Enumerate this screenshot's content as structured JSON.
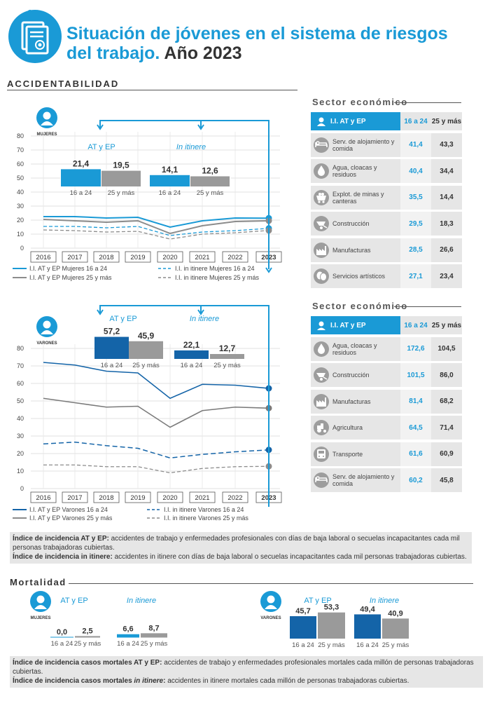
{
  "header": {
    "title_line1": "Situación de jóvenes en el sistema de riesgos",
    "title_line2_bold": "del trabajo.",
    "title_line2_year": " Año 2023"
  },
  "sections": {
    "accidentabilidad": "ACCIDENTABILIDAD",
    "mortalidad": "Mortalidad"
  },
  "colors": {
    "blue": "#1a9ad6",
    "dark_blue": "#1464a8",
    "gray": "#8c8c8c",
    "light_gray": "#e6e6e6"
  },
  "mujeres_chart": {
    "badge_label": "MUJERES",
    "group1_label": "AT y EP",
    "group2_label": "In itinere",
    "bars": [
      {
        "label": "21,4",
        "cat": "16 a 24"
      },
      {
        "label": "19,5",
        "cat": "25 y más"
      },
      {
        "label": "14,1",
        "cat": "16 a 24"
      },
      {
        "label": "12,6",
        "cat": "25 y más"
      }
    ],
    "legend": [
      "I.I. AT y EP Mujeres 16 a 24",
      "I.I. AT y EP Mujeres 25 y más",
      "I.I. in itinere Mujeres 16 a 24",
      "I.I. in itinere Mujeres 25 y más"
    ]
  },
  "varones_chart": {
    "badge_label": "VARONES",
    "group1_label": "AT y EP",
    "group2_label": "In itinere",
    "bars": [
      {
        "label": "57,2",
        "cat": "16 a 24"
      },
      {
        "label": "45,9",
        "cat": "25 y más"
      },
      {
        "label": "22,1",
        "cat": "16 a 24"
      },
      {
        "label": "12,7",
        "cat": "25 y más"
      }
    ],
    "legend": [
      "I.I. AT y EP Varones 16 a 24",
      "I.I. AT y EP Varones 25 y más",
      "I.I. in itinere Varones 16 a 24",
      "I.I. in itinere Varones 25 y más"
    ]
  },
  "chart_data": [
    {
      "type": "line",
      "x": [
        "2016",
        "2017",
        "2018",
        "2019",
        "2020",
        "2021",
        "2022",
        "2023"
      ],
      "ylim": [
        0,
        80
      ],
      "yticks": [
        "0",
        "10",
        "20",
        "30",
        "40",
        "50",
        "60",
        "70",
        "80"
      ],
      "series": [
        {
          "name": "I.I. AT y EP Mujeres 16 a 24",
          "values": [
            22.5,
            22.5,
            21.5,
            22,
            15,
            19.5,
            21.5,
            21.4
          ]
        },
        {
          "name": "I.I. AT y EP Mujeres 25 y más",
          "values": [
            20.5,
            19.5,
            18.5,
            19.5,
            10.5,
            16,
            19,
            19.5
          ]
        },
        {
          "name": "I.I. in itinere Mujeres 16 a 24",
          "values": [
            15.5,
            15.5,
            14.5,
            15.5,
            9,
            11.5,
            12.5,
            14.1
          ]
        },
        {
          "name": "I.I. in itinere Mujeres 25 y más",
          "values": [
            13,
            12.5,
            11.5,
            12,
            6.5,
            10,
            11,
            12.6
          ]
        }
      ]
    },
    {
      "type": "line",
      "x": [
        "2016",
        "2017",
        "2018",
        "2019",
        "2020",
        "2021",
        "2022",
        "2023"
      ],
      "ylim": [
        0,
        80
      ],
      "yticks": [
        "0",
        "10",
        "20",
        "30",
        "40",
        "50",
        "60",
        "70",
        "80"
      ],
      "series": [
        {
          "name": "I.I. AT y EP Varones 16 a 24",
          "values": [
            72,
            70.5,
            67,
            66,
            51.5,
            59.5,
            59,
            57.2
          ]
        },
        {
          "name": "I.I. AT y EP Varones 25 y más",
          "values": [
            51.5,
            49,
            46.5,
            47,
            35,
            44.5,
            46.5,
            45.9
          ]
        },
        {
          "name": "I.I. in itinere Varones 16 a 24",
          "values": [
            25.5,
            26.5,
            24.5,
            23,
            17.5,
            19.5,
            21,
            22.1
          ]
        },
        {
          "name": "I.I. in itinere Varones 25 y más",
          "values": [
            13.5,
            13.5,
            12.5,
            12.5,
            9,
            11.5,
            12.5,
            12.7
          ]
        }
      ]
    }
  ],
  "table1": {
    "title": "Sector económico",
    "head": {
      "c1": "I.I. AT y EP",
      "c2": "16 a 24",
      "c3": "25 y más"
    },
    "rows": [
      {
        "label": "Serv. de alojamiento y comida",
        "v1": "41,4",
        "v2": "43,3",
        "icon": "bed-icon"
      },
      {
        "label": "Agua, cloacas y residuos",
        "v1": "40,4",
        "v2": "34,4",
        "icon": "water-drop-icon"
      },
      {
        "label": "Explot. de minas y canteras",
        "v1": "35,5",
        "v2": "14,4",
        "icon": "mine-cart-icon"
      },
      {
        "label": "Construcción",
        "v1": "29,5",
        "v2": "18,3",
        "icon": "wheelbarrow-icon"
      },
      {
        "label": "Manufacturas",
        "v1": "28,5",
        "v2": "26,6",
        "icon": "factory-icon"
      },
      {
        "label": "Servicios artísticos",
        "v1": "27,1",
        "v2": "23,4",
        "icon": "theater-masks-icon"
      }
    ]
  },
  "table2": {
    "title": "Sector económico",
    "head": {
      "c1": "I.I. AT y EP",
      "c2": "16 a 24",
      "c3": "25 y más"
    },
    "rows": [
      {
        "label": "Agua, cloacas y residuos",
        "v1": "172,6",
        "v2": "104,5",
        "icon": "water-drop-icon"
      },
      {
        "label": "Construcción",
        "v1": "101,5",
        "v2": "86,0",
        "icon": "wheelbarrow-icon"
      },
      {
        "label": "Manufacturas",
        "v1": "81,4",
        "v2": "68,2",
        "icon": "factory-icon"
      },
      {
        "label": "Agricultura",
        "v1": "64,5",
        "v2": "71,4",
        "icon": "tractor-icon"
      },
      {
        "label": "Transporte",
        "v1": "61,6",
        "v2": "60,9",
        "icon": "bus-icon"
      },
      {
        "label": "Serv. de alojamiento y comida",
        "v1": "60,2",
        "v2": "45,8",
        "icon": "bed-icon"
      }
    ]
  },
  "note1": {
    "b1": "Índice de incidencia AT y EP:",
    "t1": " accidentes de trabajo y enfermedades profesionales con días de baja laboral o secuelas incapacitantes cada mil personas trabajadoras cubiertas.",
    "b2": "Índice de incidencia in itinere:",
    "t2": " accidentes in itinere con días de baja laboral o secuelas incapacitantes cada mil personas trabajadoras cubiertas."
  },
  "mortalidad": {
    "mujeres": {
      "badge_label": "MUJERES",
      "group1_label": "AT y EP",
      "group2_label": "In itinere",
      "bars": [
        {
          "label": "0,0",
          "cat": "16 a 24"
        },
        {
          "label": "2,5",
          "cat": "25 y más"
        },
        {
          "label": "6,6",
          "cat": "16 a 24"
        },
        {
          "label": "8,7",
          "cat": "25 y más"
        }
      ]
    },
    "varones": {
      "badge_label": "VARONES",
      "group1_label": "AT y EP",
      "group2_label": "In itinere",
      "bars": [
        {
          "label": "45,7",
          "cat": "16 a 24"
        },
        {
          "label": "53,3",
          "cat": "25 y más"
        },
        {
          "label": "49,4",
          "cat": "16 a 24"
        },
        {
          "label": "40,9",
          "cat": "25 y más"
        }
      ]
    }
  },
  "note2": {
    "b1": "Índice de incidencia casos mortales AT y EP:",
    "t1": " accidentes de trabajo y enfermedades profesionales mortales cada millón de personas trabajadoras cubiertas.",
    "b2a": "Índice de incidencia casos mortales ",
    "b2b": "in itinere",
    "b2c": ":",
    "t2": " accidentes in itinere mortales cada millón de personas trabajadoras cubiertas."
  }
}
